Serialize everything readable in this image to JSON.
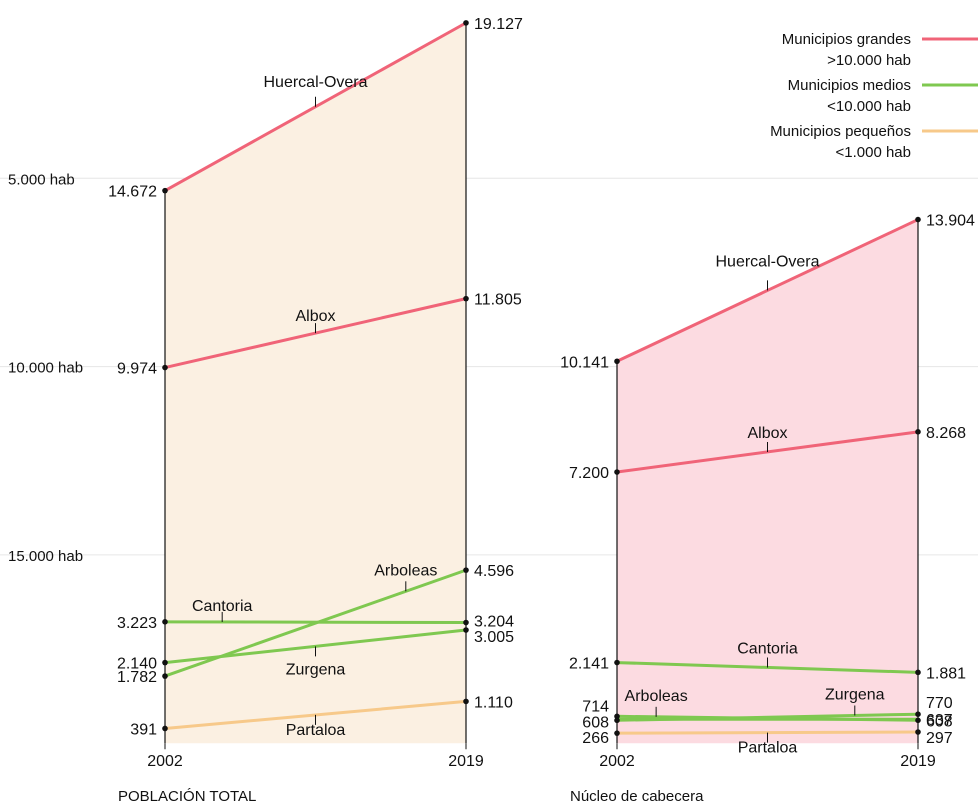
{
  "legend": [
    {
      "line1": "Municipios grandes",
      "line2": ">10.000 hab",
      "color": "#f06478"
    },
    {
      "line1": "Municipios medios",
      "line2": "<10.000 hab",
      "color": "#7fc850"
    },
    {
      "line1": "Municipios pequeños",
      "line2": "<1.000 hab",
      "color": "#f7c98a"
    }
  ],
  "y_axis_labels": [
    "15.000 hab",
    "10.000 hab",
    "5.000 hab"
  ],
  "chart_data": [
    {
      "type": "slope",
      "caption": "POBLACIÓN TOTAL",
      "x": [
        "2002",
        "2019"
      ],
      "fill_color": "#fbf0e2",
      "y_ticks": [
        5000,
        10000,
        15000
      ],
      "series": [
        {
          "name": "Huercal-Overa",
          "category": "Municipios grandes",
          "values": [
            14672,
            19127
          ],
          "labels": [
            "14.672",
            "19.127"
          ]
        },
        {
          "name": "Albox",
          "category": "Municipios grandes",
          "values": [
            9974,
            11805
          ],
          "labels": [
            "9.974",
            "11.805"
          ]
        },
        {
          "name": "Arboleas",
          "category": "Municipios medios",
          "values": [
            1782,
            4596
          ],
          "labels": [
            "1.782",
            "4.596"
          ]
        },
        {
          "name": "Cantoria",
          "category": "Municipios medios",
          "values": [
            3223,
            3204
          ],
          "labels": [
            "3.223",
            "3.204"
          ]
        },
        {
          "name": "Zurgena",
          "category": "Municipios medios",
          "values": [
            2140,
            3005
          ],
          "labels": [
            "2.140",
            "3.005"
          ]
        },
        {
          "name": "Partaloa",
          "category": "Municipios pequeños",
          "values": [
            391,
            1110
          ],
          "labels": [
            "391",
            "1.110"
          ]
        }
      ]
    },
    {
      "type": "slope",
      "caption": "Núcleo de cabecera",
      "x": [
        "2002",
        "2019"
      ],
      "fill_color": "#fcdbe1",
      "series": [
        {
          "name": "Huercal-Overa",
          "category": "Municipios grandes",
          "values": [
            10141,
            13904
          ],
          "labels": [
            "10.141",
            "13.904"
          ]
        },
        {
          "name": "Albox",
          "category": "Municipios grandes",
          "values": [
            7200,
            8268
          ],
          "labels": [
            "7.200",
            "8.268"
          ]
        },
        {
          "name": "Cantoria",
          "category": "Municipios medios",
          "values": [
            2141,
            1881
          ],
          "labels": [
            "2.141",
            "1.881"
          ]
        },
        {
          "name": "Arboleas",
          "category": "Municipios medios",
          "values": [
            714,
            608
          ],
          "labels": [
            "714",
            "608"
          ]
        },
        {
          "name": "Zurgena",
          "category": "Municipios medios",
          "values": [
            608,
            770
          ],
          "labels": [
            "608",
            "770"
          ]
        },
        {
          "name": "Partaloa",
          "category": "Municipios pequeños",
          "values": [
            266,
            297
          ],
          "labels": [
            "266",
            "297"
          ]
        }
      ],
      "unlabeled_lines": [
        {
          "category": "Municipios medios",
          "values": [
            637,
            637
          ]
        }
      ],
      "extra_right_labels": [
        "637"
      ]
    }
  ]
}
